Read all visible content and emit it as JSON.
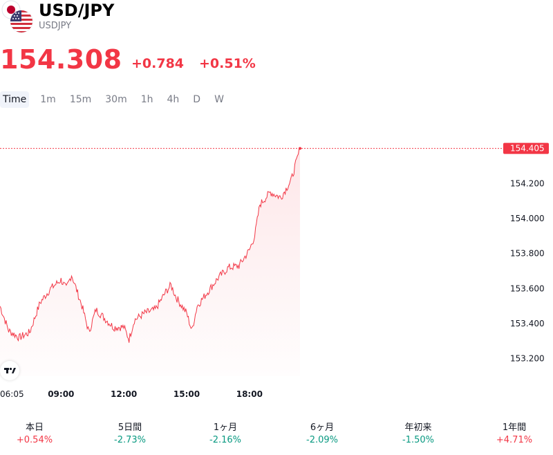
{
  "symbol": {
    "title": "USD/JPY",
    "subtitle": "USDJPY"
  },
  "quote": {
    "price": "154.308",
    "change": "+0.784",
    "change_pct": "+0.51%"
  },
  "colors": {
    "down_red": "#f23645",
    "up_green": "#089981",
    "muted": "#787b86",
    "line": "#f23645"
  },
  "tabs": [
    {
      "label": "Time",
      "active": true
    },
    {
      "label": "1m"
    },
    {
      "label": "15m"
    },
    {
      "label": "30m"
    },
    {
      "label": "1h"
    },
    {
      "label": "4h"
    },
    {
      "label": "D"
    },
    {
      "label": "W"
    }
  ],
  "chart_data": {
    "type": "area",
    "title": "",
    "ylim": [
      153.1,
      154.45
    ],
    "y_ticks": [
      "154.200",
      "154.000",
      "153.800",
      "153.600",
      "153.400",
      "153.200"
    ],
    "x_ticks": [
      "06:05",
      "09:00",
      "12:00",
      "15:00",
      "18:00"
    ],
    "last_price_label": "154.405",
    "series": [
      {
        "x": [
          "06:05",
          "06:30",
          "07:00",
          "07:30",
          "08:00",
          "08:30",
          "09:00",
          "09:15",
          "09:30",
          "10:00",
          "10:20",
          "10:40",
          "11:00",
          "11:30",
          "12:00",
          "12:15",
          "12:30",
          "13:00",
          "13:30",
          "14:00",
          "14:15",
          "14:30",
          "15:00",
          "15:15",
          "15:30",
          "16:00",
          "16:30",
          "17:00",
          "17:30",
          "18:00",
          "18:15",
          "18:30",
          "19:00",
          "19:30",
          "20:00",
          "20:25"
        ],
        "y": [
          153.5,
          153.36,
          153.32,
          153.35,
          153.52,
          153.6,
          153.65,
          153.6,
          153.68,
          153.5,
          153.35,
          153.48,
          153.44,
          153.38,
          153.38,
          153.31,
          153.42,
          153.46,
          153.48,
          153.58,
          153.62,
          153.55,
          153.46,
          153.36,
          153.5,
          153.58,
          153.66,
          153.72,
          153.73,
          153.82,
          153.9,
          154.08,
          154.15,
          154.12,
          154.22,
          154.4
        ]
      }
    ]
  },
  "periods": [
    {
      "label": "本日",
      "value": "+0.54%",
      "dir": "up"
    },
    {
      "label": "5日間",
      "value": "-2.73%",
      "dir": "down"
    },
    {
      "label": "1ヶ月",
      "value": "-2.16%",
      "dir": "down"
    },
    {
      "label": "6ヶ月",
      "value": "-2.09%",
      "dir": "down"
    },
    {
      "label": "年初来",
      "value": "-1.50%",
      "dir": "down"
    },
    {
      "label": "1年間",
      "value": "+4.71%",
      "dir": "up"
    }
  ]
}
